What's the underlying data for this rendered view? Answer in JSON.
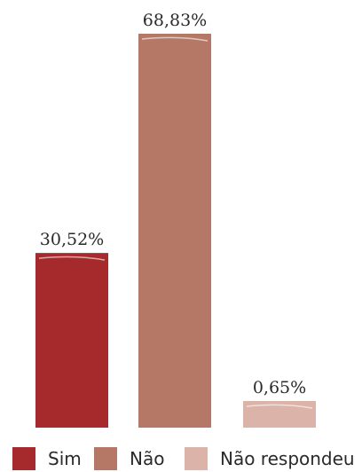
{
  "chart_data": {
    "type": "bar",
    "categories": [
      "Sim",
      "Não",
      "Não respondeu"
    ],
    "values": [
      30.52,
      68.83,
      0.65
    ],
    "value_labels": [
      "30,52%",
      "68,83%",
      "0,65%"
    ],
    "colors": [
      "#a62a2c",
      "#b57866",
      "#dcb3a8"
    ],
    "title": "",
    "xlabel": "",
    "ylabel": "",
    "ylim": [
      0,
      100
    ],
    "grid": false,
    "legend_position": "bottom"
  }
}
